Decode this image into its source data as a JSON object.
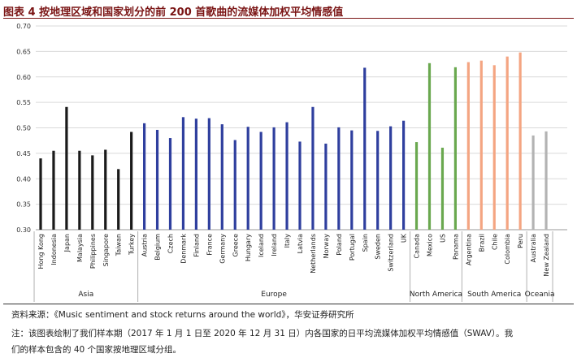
{
  "figure": {
    "title": "图表 4 按地理区域和国家划分的前 200 首歌曲的流媒体加权平均情感值",
    "title_color": "#7a1414"
  },
  "chart_data": {
    "type": "bar",
    "title": "",
    "xlabel": "",
    "ylabel": "",
    "ylim": [
      0.3,
      0.7
    ],
    "yticks": [
      "0.30",
      "0.35",
      "0.40",
      "0.45",
      "0.50",
      "0.55",
      "0.60",
      "0.65",
      "0.70"
    ],
    "grid": true,
    "legend": "none",
    "groups": [
      {
        "name": "Asia",
        "color": "#1a1a1a",
        "categories": [
          "Hong Kong",
          "Indonesia",
          "Japan",
          "Malaysia",
          "Philippines",
          "Singapore",
          "Taiwan",
          "Turkey"
        ],
        "values": [
          0.44,
          0.455,
          0.541,
          0.455,
          0.446,
          0.457,
          0.419,
          0.492
        ]
      },
      {
        "name": "Europe",
        "color": "#2f3f9e",
        "categories": [
          "Austria",
          "Belgium",
          "Czech",
          "Denmark",
          "Finland",
          "France",
          "Germany",
          "Greece",
          "Hungary",
          "Iceland",
          "Ireland",
          "Italy",
          "Latvia",
          "Netherlands",
          "Norway",
          "Poland",
          "Portugal",
          "Spain",
          "Sweden",
          "Switzerland",
          "UK"
        ],
        "values": [
          0.509,
          0.496,
          0.48,
          0.521,
          0.518,
          0.519,
          0.507,
          0.476,
          0.502,
          0.492,
          0.501,
          0.511,
          0.473,
          0.541,
          0.469,
          0.501,
          0.495,
          0.618,
          0.494,
          0.503,
          0.514
        ]
      },
      {
        "name": "North America",
        "color": "#6aa84f",
        "categories": [
          "Canada",
          "Mexico",
          "US",
          "Panama"
        ],
        "values": [
          0.472,
          0.627,
          0.461,
          0.619
        ]
      },
      {
        "name": "South America",
        "color": "#f4a582",
        "categories": [
          "Argentina",
          "Brazil",
          "Chile",
          "Colombia",
          "Peru"
        ],
        "values": [
          0.629,
          0.632,
          0.623,
          0.64,
          0.648
        ]
      },
      {
        "name": "Oceania",
        "color": "#b3b3b3",
        "categories": [
          "Australia",
          "New Zealand"
        ],
        "values": [
          0.485,
          0.493
        ]
      }
    ]
  },
  "footer": {
    "source": "资料来源：《Music sentiment and stock returns around the world》，华安证券研究所",
    "note_line1": "注：该图表绘制了我们样本期（2017 年 1 月 1 日至 2020 年 12 月 31 日）内各国家的日平均流媒体加权平均情感值（SWAV）。我",
    "note_line2": "们的样本包含的 40 个国家按地理区域分组。"
  }
}
